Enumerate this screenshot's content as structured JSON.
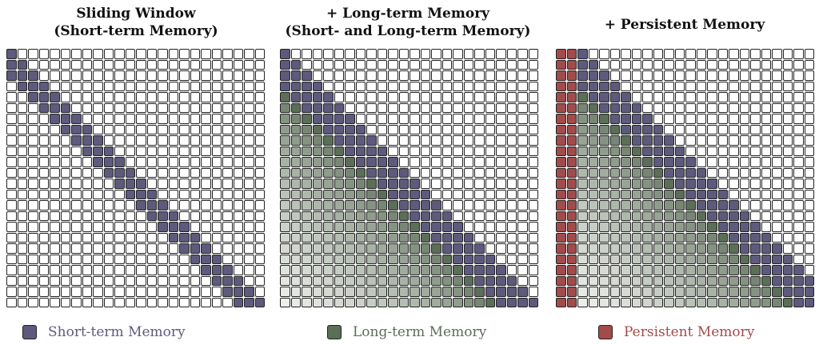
{
  "colors": {
    "short_term": "#5d5a7d",
    "long_term": "#5b6e58",
    "persistent": "#a34a4a",
    "grid_line": "#222222",
    "empty": "#ffffff"
  },
  "grid_size": 24,
  "panels": [
    {
      "title": "Sliding Window\n(Short-term Memory)",
      "window": 3,
      "long_term": false,
      "persistent_cols": 0
    },
    {
      "title": "+ Long-term Memory\n(Short- and Long-term Memory)",
      "window": 4,
      "long_term": true,
      "persistent_cols": 0
    },
    {
      "title": "+ Persistent Memory",
      "window": 4,
      "long_term": true,
      "persistent_cols": 2
    }
  ],
  "legend": [
    {
      "label": "Short-term Memory",
      "color": "#5d5a7d"
    },
    {
      "label": "Long-term Memory",
      "color": "#5b6e58"
    },
    {
      "label": "Persistent Memory",
      "color": "#a34a4a"
    }
  ]
}
